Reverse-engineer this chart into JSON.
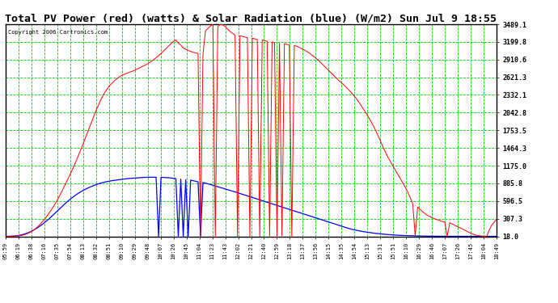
{
  "title": "Total PV Power (red) (watts) & Solar Radiation (blue) (W/m2) Sun Jul 9 18:55",
  "copyright": "Copyright 2006 Cartronics.com",
  "yticks": [
    18.0,
    307.3,
    596.5,
    885.8,
    1175.0,
    1464.3,
    1753.5,
    2042.8,
    2332.1,
    2621.3,
    2910.6,
    3199.8,
    3489.1
  ],
  "ymin": 18.0,
  "ymax": 3489.1,
  "xtick_labels": [
    "05:59",
    "06:19",
    "06:38",
    "07:16",
    "07:35",
    "07:54",
    "08:13",
    "08:32",
    "08:51",
    "09:10",
    "09:29",
    "09:48",
    "10:07",
    "10:26",
    "10:45",
    "11:04",
    "11:23",
    "11:43",
    "12:02",
    "12:21",
    "12:40",
    "12:59",
    "13:18",
    "13:37",
    "13:56",
    "14:15",
    "14:35",
    "14:54",
    "15:13",
    "15:31",
    "15:51",
    "16:10",
    "16:29",
    "16:46",
    "17:07",
    "17:26",
    "17:45",
    "18:04",
    "18:49"
  ],
  "fig_bg": "#ffffff",
  "plot_bg": "#ffffff",
  "grid_color": "#00cc00",
  "border_color": "#000000",
  "red_color": "#ff0000",
  "blue_color": "#0000ff",
  "copyright_color": "#000000",
  "title_color": "#000000",
  "n_points": 200,
  "red_values": [
    18,
    18,
    19,
    20,
    22,
    25,
    30,
    38,
    50,
    65,
    85,
    110,
    140,
    175,
    215,
    260,
    310,
    365,
    420,
    480,
    545,
    615,
    690,
    768,
    850,
    935,
    1020,
    1105,
    1195,
    1290,
    1390,
    1490,
    1590,
    1695,
    1800,
    1905,
    2010,
    2110,
    2200,
    2285,
    2360,
    2420,
    2475,
    2520,
    2560,
    2595,
    2625,
    2650,
    2670,
    2685,
    2700,
    2715,
    2730,
    2750,
    2770,
    2790,
    2810,
    2830,
    2855,
    2880,
    2910,
    2940,
    2975,
    3010,
    3050,
    3090,
    3130,
    3170,
    3205,
    3230,
    3180,
    3150,
    3100,
    3080,
    3060,
    3045,
    3030,
    3020,
    3010,
    18,
    3000,
    3380,
    3420,
    3460,
    3489,
    18,
    3450,
    3489,
    3480,
    3450,
    3410,
    3370,
    3340,
    3310,
    18,
    3300,
    3290,
    3280,
    3270,
    18,
    3260,
    3250,
    3240,
    18,
    3230,
    3220,
    3210,
    18,
    3200,
    3190,
    18,
    3180,
    18,
    3170,
    3160,
    3150,
    18,
    3140,
    3130,
    3110,
    3090,
    3070,
    3045,
    3020,
    2990,
    2960,
    2925,
    2890,
    2850,
    2810,
    2770,
    2730,
    2690,
    2650,
    2610,
    2570,
    2535,
    2500,
    2460,
    2420,
    2375,
    2330,
    2280,
    2225,
    2165,
    2100,
    2040,
    1975,
    1905,
    1830,
    1750,
    1660,
    1570,
    1475,
    1390,
    1310,
    1240,
    1170,
    1100,
    1030,
    960,
    890,
    820,
    740,
    650,
    555,
    18,
    500,
    460,
    420,
    390,
    360,
    340,
    320,
    305,
    290,
    275,
    260,
    250,
    18,
    240,
    220,
    200,
    180,
    160,
    140,
    120,
    100,
    80,
    60,
    45,
    35,
    28,
    22,
    18,
    18,
    120,
    200,
    250,
    300,
    350,
    400,
    420,
    380,
    320,
    260,
    200,
    150,
    100,
    60,
    35,
    18,
    18,
    18,
    18,
    18,
    18
  ],
  "blue_values": [
    18,
    18,
    20,
    22,
    25,
    30,
    38,
    48,
    60,
    75,
    92,
    112,
    135,
    160,
    188,
    218,
    250,
    284,
    320,
    358,
    396,
    435,
    474,
    512,
    550,
    586,
    620,
    652,
    682,
    710,
    736,
    760,
    782,
    802,
    820,
    838,
    854,
    869,
    882,
    894,
    904,
    913,
    921,
    928,
    934,
    940,
    945,
    950,
    955,
    960,
    965,
    968,
    972,
    975,
    978,
    980,
    982,
    984,
    985,
    986,
    986,
    985,
    18,
    984,
    982,
    980,
    977,
    973,
    968,
    962,
    18,
    955,
    18,
    947,
    18,
    938,
    929,
    920,
    910,
    18,
    900,
    889,
    878,
    866,
    854,
    842,
    830,
    818,
    806,
    794,
    782,
    770,
    758,
    745,
    732,
    719,
    706,
    693,
    680,
    667,
    654,
    641,
    628,
    615,
    602,
    589,
    576,
    563,
    550,
    537,
    524,
    511,
    498,
    485,
    472,
    459,
    446,
    433,
    420,
    407,
    394,
    381,
    368,
    355,
    342,
    329,
    316,
    303,
    290,
    277,
    264,
    251,
    238,
    225,
    212,
    199,
    186,
    173,
    160,
    148,
    137,
    127,
    118,
    110,
    102,
    95,
    89,
    83,
    77,
    72,
    67,
    62,
    58,
    54,
    50,
    47,
    44,
    41,
    38,
    36,
    34,
    32,
    30,
    28,
    27,
    26,
    25,
    24,
    23,
    22,
    22,
    21,
    21,
    20,
    20,
    20,
    19,
    19,
    19,
    19,
    18,
    18,
    18,
    18,
    18,
    18,
    18,
    18,
    18,
    18,
    18,
    18,
    18,
    18,
    18,
    18,
    18,
    18,
    18,
    18,
    18,
    18
  ]
}
